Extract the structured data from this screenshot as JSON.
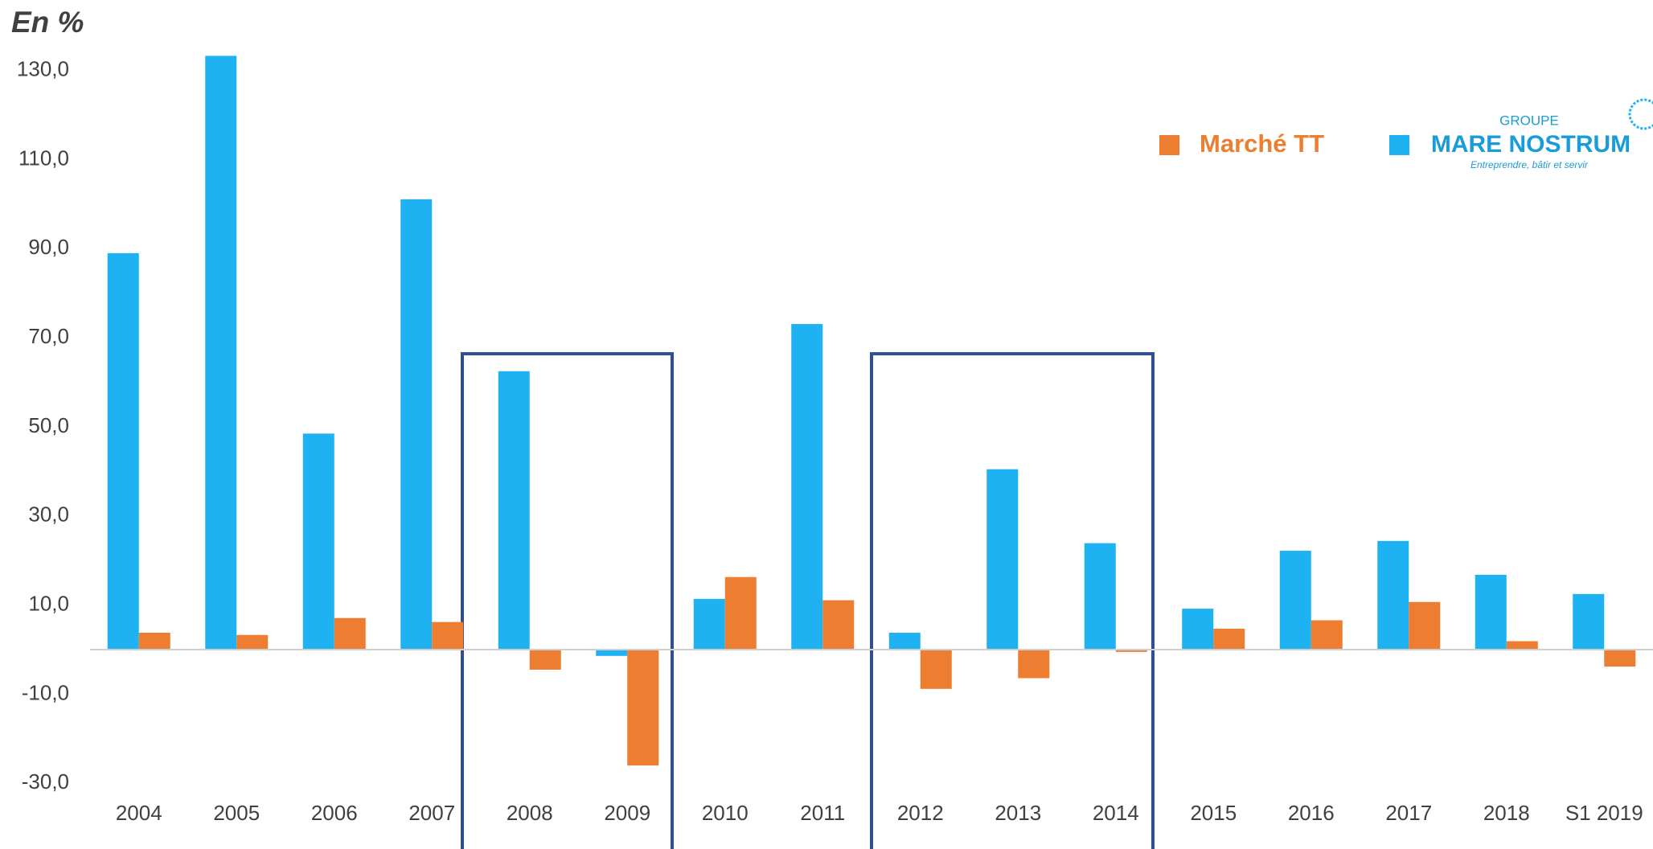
{
  "chart_data": {
    "type": "bar",
    "title": "En %",
    "categories": [
      "2004",
      "2005",
      "2006",
      "2007",
      "2008",
      "2009",
      "2010",
      "2011",
      "2012",
      "2013",
      "2014",
      "2015",
      "2016",
      "2017",
      "2018",
      "S1 2019"
    ],
    "series": [
      {
        "name": "MARE NOSTRUM",
        "color": "#1fb2f2",
        "values": [
          89.0,
          133.3,
          48.5,
          101.1,
          62.5,
          -1.4,
          11.4,
          73.1,
          3.8,
          40.5,
          23.9,
          9.2,
          22.2,
          24.4,
          16.8,
          12.5
        ]
      },
      {
        "name": "Marché TT",
        "color": "#ed7d31",
        "values": [
          3.8,
          3.3,
          7.1,
          6.2,
          -4.5,
          -26.0,
          16.3,
          11.1,
          -8.8,
          -6.4,
          -0.5,
          4.7,
          6.6,
          10.7,
          1.9,
          -3.8
        ]
      }
    ],
    "legend_logo": {
      "top": "GROUPE",
      "tagline": "Entreprendre, bâtir et servir"
    },
    "ylim": [
      -35,
      135
    ],
    "yticks": [
      {
        "value": -30,
        "label": "-30,0"
      },
      {
        "value": -10,
        "label": "-10,0"
      },
      {
        "value": 10,
        "label": "10,0"
      },
      {
        "value": 30,
        "label": "30,0"
      },
      {
        "value": 50,
        "label": "50,0"
      },
      {
        "value": 70,
        "label": "70,0"
      },
      {
        "value": 90,
        "label": "90,0"
      },
      {
        "value": 110,
        "label": "110,0"
      },
      {
        "value": 130,
        "label": "130,0"
      }
    ],
    "grid": false
  }
}
